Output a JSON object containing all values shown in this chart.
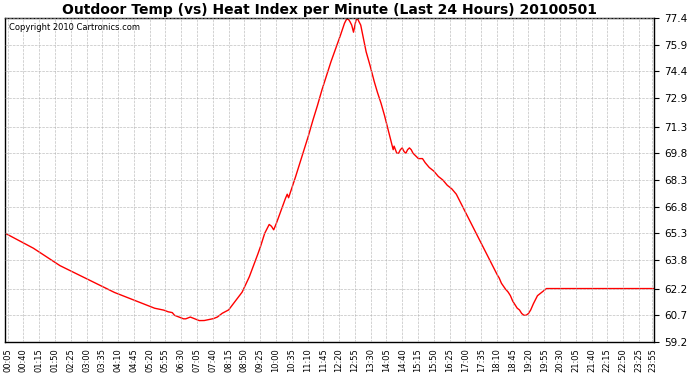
{
  "title": "Outdoor Temp (vs) Heat Index per Minute (Last 24 Hours) 20100501",
  "copyright": "Copyright 2010 Cartronics.com",
  "line_color": "#ff0000",
  "background_color": "#ffffff",
  "grid_color": "#b0b0b0",
  "yticks": [
    59.2,
    60.7,
    62.2,
    63.8,
    65.3,
    66.8,
    68.3,
    69.8,
    71.3,
    72.9,
    74.4,
    75.9,
    77.4
  ],
  "ymin": 59.2,
  "ymax": 77.4,
  "xtick_labels": [
    "00:05",
    "00:40",
    "01:15",
    "01:50",
    "02:25",
    "03:00",
    "03:35",
    "04:10",
    "04:45",
    "05:20",
    "05:55",
    "06:30",
    "07:05",
    "07:40",
    "08:15",
    "08:50",
    "09:25",
    "10:00",
    "10:35",
    "11:10",
    "11:45",
    "12:20",
    "12:55",
    "13:30",
    "14:05",
    "14:40",
    "15:15",
    "15:50",
    "16:25",
    "17:00",
    "17:35",
    "18:10",
    "18:45",
    "19:20",
    "19:55",
    "20:30",
    "21:05",
    "21:40",
    "22:15",
    "22:50",
    "23:25",
    "23:55"
  ],
  "control_points": [
    [
      0,
      65.3
    ],
    [
      15,
      65.1
    ],
    [
      30,
      64.9
    ],
    [
      60,
      64.5
    ],
    [
      90,
      64.0
    ],
    [
      120,
      63.5
    ],
    [
      160,
      63.0
    ],
    [
      200,
      62.5
    ],
    [
      240,
      62.0
    ],
    [
      280,
      61.6
    ],
    [
      310,
      61.3
    ],
    [
      330,
      61.1
    ],
    [
      350,
      61.0
    ],
    [
      360,
      60.9
    ],
    [
      370,
      60.85
    ],
    [
      375,
      60.7
    ],
    [
      385,
      60.6
    ],
    [
      390,
      60.55
    ],
    [
      395,
      60.5
    ],
    [
      400,
      60.5
    ],
    [
      405,
      60.55
    ],
    [
      410,
      60.6
    ],
    [
      415,
      60.55
    ],
    [
      420,
      60.5
    ],
    [
      425,
      60.45
    ],
    [
      430,
      60.4
    ],
    [
      440,
      60.4
    ],
    [
      450,
      60.45
    ],
    [
      460,
      60.5
    ],
    [
      470,
      60.6
    ],
    [
      480,
      60.8
    ],
    [
      495,
      61.0
    ],
    [
      510,
      61.5
    ],
    [
      525,
      62.0
    ],
    [
      540,
      62.8
    ],
    [
      555,
      63.8
    ],
    [
      565,
      64.5
    ],
    [
      575,
      65.3
    ],
    [
      585,
      65.8
    ],
    [
      590,
      65.7
    ],
    [
      595,
      65.5
    ],
    [
      600,
      65.8
    ],
    [
      610,
      66.5
    ],
    [
      620,
      67.2
    ],
    [
      625,
      67.5
    ],
    [
      628,
      67.3
    ],
    [
      632,
      67.6
    ],
    [
      640,
      68.2
    ],
    [
      650,
      69.0
    ],
    [
      660,
      69.8
    ],
    [
      670,
      70.6
    ],
    [
      680,
      71.5
    ],
    [
      690,
      72.3
    ],
    [
      700,
      73.2
    ],
    [
      710,
      74.0
    ],
    [
      720,
      74.8
    ],
    [
      730,
      75.5
    ],
    [
      740,
      76.2
    ],
    [
      748,
      76.8
    ],
    [
      752,
      77.1
    ],
    [
      756,
      77.3
    ],
    [
      760,
      77.35
    ],
    [
      764,
      77.2
    ],
    [
      768,
      77.0
    ],
    [
      772,
      76.6
    ],
    [
      775,
      77.0
    ],
    [
      778,
      77.3
    ],
    [
      781,
      77.35
    ],
    [
      784,
      77.2
    ],
    [
      788,
      77.0
    ],
    [
      792,
      76.5
    ],
    [
      796,
      76.0
    ],
    [
      800,
      75.5
    ],
    [
      808,
      74.8
    ],
    [
      816,
      74.0
    ],
    [
      824,
      73.3
    ],
    [
      832,
      72.7
    ],
    [
      840,
      72.0
    ],
    [
      845,
      71.5
    ],
    [
      850,
      71.0
    ],
    [
      855,
      70.5
    ],
    [
      858,
      70.2
    ],
    [
      860,
      70.0
    ],
    [
      862,
      70.2
    ],
    [
      865,
      70.0
    ],
    [
      868,
      69.8
    ],
    [
      872,
      69.8
    ],
    [
      876,
      70.0
    ],
    [
      880,
      70.1
    ],
    [
      884,
      69.9
    ],
    [
      888,
      69.8
    ],
    [
      892,
      70.0
    ],
    [
      896,
      70.1
    ],
    [
      900,
      70.0
    ],
    [
      904,
      69.8
    ],
    [
      908,
      69.7
    ],
    [
      912,
      69.6
    ],
    [
      916,
      69.5
    ],
    [
      920,
      69.5
    ],
    [
      925,
      69.5
    ],
    [
      930,
      69.3
    ],
    [
      940,
      69.0
    ],
    [
      950,
      68.8
    ],
    [
      960,
      68.5
    ],
    [
      970,
      68.3
    ],
    [
      980,
      68.0
    ],
    [
      990,
      67.8
    ],
    [
      1000,
      67.5
    ],
    [
      1010,
      67.0
    ],
    [
      1020,
      66.5
    ],
    [
      1030,
      66.0
    ],
    [
      1040,
      65.5
    ],
    [
      1050,
      65.0
    ],
    [
      1060,
      64.5
    ],
    [
      1070,
      64.0
    ],
    [
      1080,
      63.5
    ],
    [
      1090,
      63.0
    ],
    [
      1095,
      62.8
    ],
    [
      1100,
      62.5
    ],
    [
      1108,
      62.2
    ],
    [
      1115,
      62.0
    ],
    [
      1120,
      61.8
    ],
    [
      1125,
      61.5
    ],
    [
      1130,
      61.3
    ],
    [
      1135,
      61.1
    ],
    [
      1140,
      61.0
    ],
    [
      1145,
      60.8
    ],
    [
      1150,
      60.7
    ],
    [
      1155,
      60.7
    ],
    [
      1160,
      60.8
    ],
    [
      1165,
      61.0
    ],
    [
      1170,
      61.3
    ],
    [
      1180,
      61.8
    ],
    [
      1190,
      62.0
    ],
    [
      1200,
      62.2
    ],
    [
      1210,
      62.2
    ],
    [
      1220,
      62.2
    ],
    [
      1230,
      62.2
    ],
    [
      1250,
      62.2
    ],
    [
      1280,
      62.2
    ],
    [
      1320,
      62.2
    ],
    [
      1380,
      62.2
    ],
    [
      1439,
      62.2
    ]
  ]
}
